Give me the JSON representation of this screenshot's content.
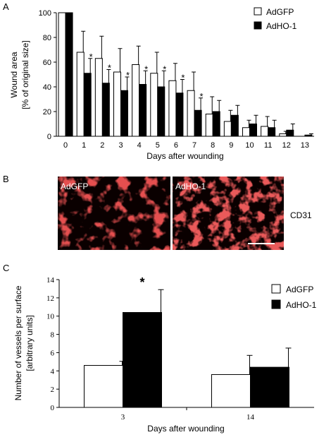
{
  "panels": {
    "a": {
      "label": "A"
    },
    "b": {
      "label": "B",
      "images": [
        "AdGFP",
        "AdHO-1"
      ],
      "marker": "CD31"
    },
    "c": {
      "label": "C"
    }
  },
  "colors": {
    "open_bar": "#ffffff",
    "filled_bar": "#000000",
    "tissue_bg": "#0a0000",
    "tissue_stain": "#c41a1a"
  },
  "chart_data": [
    {
      "type": "bar",
      "categories": [
        "0",
        "1",
        "2",
        "3",
        "4",
        "5",
        "6",
        "7",
        "8",
        "9",
        "10",
        "11",
        "12",
        "13"
      ],
      "series": [
        {
          "name": "AdGFP",
          "values": [
            100,
            68,
            63,
            52,
            58,
            51,
            45,
            37,
            18,
            12,
            7,
            8,
            2,
            0
          ],
          "errors": [
            0,
            17,
            18,
            19,
            15,
            17,
            14,
            15,
            14,
            9,
            6,
            8,
            2,
            0
          ]
        },
        {
          "name": "AdHO-1",
          "values": [
            100,
            51,
            43,
            37,
            42,
            40,
            35,
            21,
            20,
            17,
            10,
            7,
            5,
            1
          ],
          "errors": [
            0,
            12,
            11,
            11,
            11,
            13,
            11,
            10,
            9,
            8,
            7,
            6,
            5,
            1
          ]
        }
      ],
      "significant": [
        "1",
        "2",
        "3",
        "4",
        "5",
        "6",
        "7"
      ],
      "significance_mark": "*",
      "xlabel": "Days after wounding",
      "ylabel": [
        "Wound area",
        "[% of original size]"
      ],
      "ylim": [
        0,
        100
      ],
      "yticks": [
        0,
        20,
        40,
        60,
        80,
        100
      ],
      "grid": false,
      "legend": "top-right"
    },
    {
      "type": "bar",
      "categories": [
        "3",
        "14"
      ],
      "series": [
        {
          "name": "AdGFP",
          "values": [
            4.6,
            3.6
          ],
          "errors": [
            0.45,
            2.1
          ]
        },
        {
          "name": "AdHO-1",
          "values": [
            10.4,
            4.4
          ],
          "errors": [
            2.5,
            2.1
          ]
        }
      ],
      "significant": [
        "3"
      ],
      "significance_mark": "*",
      "xlabel": "Days after wounding",
      "ylabel": [
        "Number of vessels per surface",
        "[arbitrary units]"
      ],
      "ylim": [
        0,
        14
      ],
      "yticks": [
        0,
        2,
        4,
        6,
        8,
        10,
        12,
        14
      ],
      "grid": false,
      "legend": "top-right"
    }
  ]
}
